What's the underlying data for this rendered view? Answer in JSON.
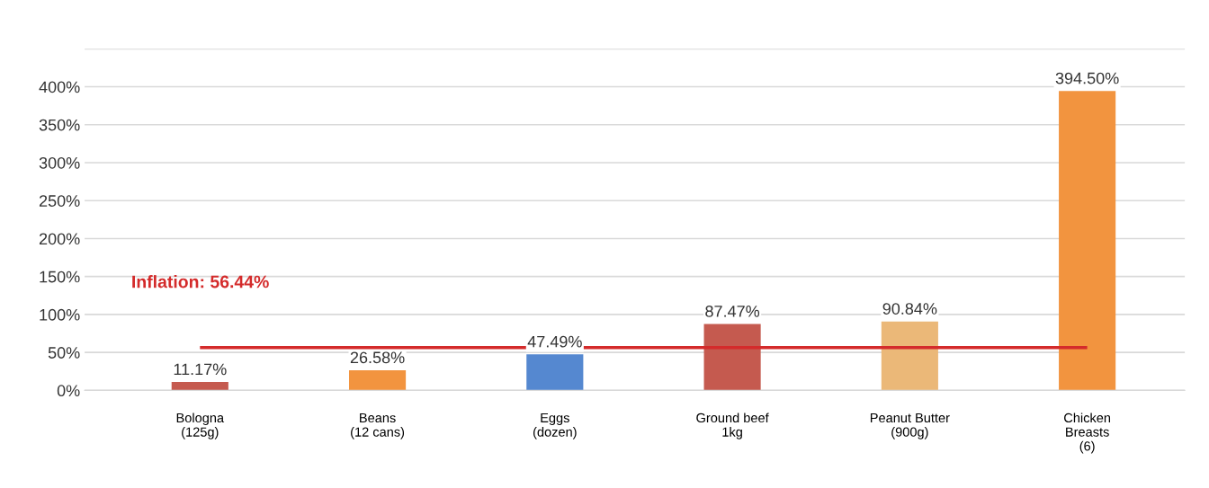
{
  "chart_data": {
    "type": "bar",
    "categories": [
      "Bologna\n(125g)",
      "Beans\n(12 cans)",
      "Eggs\n(dozen)",
      "Ground beef\n1kg",
      "Peanut Butter\n(900g)",
      "Chicken\nBreasts\n(6)"
    ],
    "values": [
      11.17,
      26.58,
      47.49,
      87.47,
      90.84,
      394.5
    ],
    "colors": [
      "#c55a4f",
      "#f2943f",
      "#5588d0",
      "#c55a4f",
      "#ebb878",
      "#f2943f"
    ],
    "value_labels": [
      "11.17%",
      "26.58%",
      "47.49%",
      "87.47%",
      "90.84%",
      "394.50%"
    ],
    "ylim": [
      0,
      450
    ],
    "yticks": [
      {
        "value": 0,
        "label": "0%"
      },
      {
        "value": 50,
        "label": "50%"
      },
      {
        "value": 100,
        "label": "100%"
      },
      {
        "value": 150,
        "label": "150%"
      },
      {
        "value": 200,
        "label": "200%"
      },
      {
        "value": 250,
        "label": "250%"
      },
      {
        "value": 300,
        "label": "300%"
      },
      {
        "value": 350,
        "label": "350%"
      },
      {
        "value": 400,
        "label": "400%"
      },
      {
        "value": 450,
        "label": null
      }
    ],
    "grid": "y",
    "ref_lines": [
      {
        "axis": "y",
        "value": 56.44,
        "label": "Inflation: 56.44%",
        "color": "#d42b2b",
        "line_style": "solid"
      }
    ]
  }
}
